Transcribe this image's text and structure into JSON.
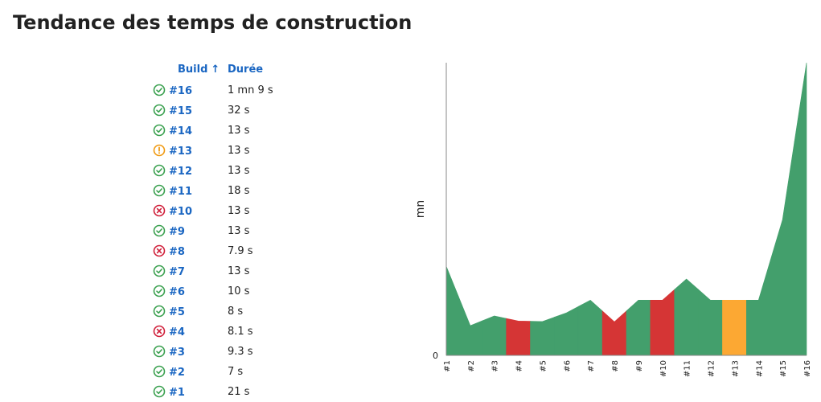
{
  "title": "Tendance des temps de construction",
  "table": {
    "header_build": "Build",
    "header_sort_indicator": "↑",
    "header_duration": "Durée",
    "rows": [
      {
        "build": "#16",
        "status": "success",
        "duration": "1 mn 9 s"
      },
      {
        "build": "#15",
        "status": "success",
        "duration": "32 s"
      },
      {
        "build": "#14",
        "status": "success",
        "duration": "13 s"
      },
      {
        "build": "#13",
        "status": "unstable",
        "duration": "13 s"
      },
      {
        "build": "#12",
        "status": "success",
        "duration": "13 s"
      },
      {
        "build": "#11",
        "status": "success",
        "duration": "18 s"
      },
      {
        "build": "#10",
        "status": "failure",
        "duration": "13 s"
      },
      {
        "build": "#9",
        "status": "success",
        "duration": "13 s"
      },
      {
        "build": "#8",
        "status": "failure",
        "duration": "7.9 s"
      },
      {
        "build": "#7",
        "status": "success",
        "duration": "13 s"
      },
      {
        "build": "#6",
        "status": "success",
        "duration": "10 s"
      },
      {
        "build": "#5",
        "status": "success",
        "duration": "8 s"
      },
      {
        "build": "#4",
        "status": "failure",
        "duration": "8.1 s"
      },
      {
        "build": "#3",
        "status": "success",
        "duration": "9.3 s"
      },
      {
        "build": "#2",
        "status": "success",
        "duration": "7 s"
      },
      {
        "build": "#1",
        "status": "success",
        "duration": "21 s"
      }
    ]
  },
  "colors": {
    "success": "#439f6c",
    "failure": "#d53535",
    "unstable": "#fca833",
    "success_icon": "#3aa04f",
    "failure_icon": "#d01f3a",
    "unstable_icon": "#f09a12"
  },
  "chart_data": {
    "type": "area",
    "ylabel": "mn",
    "y_tick_labels": [
      "0"
    ],
    "x": [
      "#1",
      "#2",
      "#3",
      "#4",
      "#5",
      "#6",
      "#7",
      "#8",
      "#9",
      "#10",
      "#11",
      "#12",
      "#13",
      "#14",
      "#15",
      "#16"
    ],
    "values_minutes": [
      0.35,
      0.117,
      0.155,
      0.135,
      0.133,
      0.167,
      0.217,
      0.132,
      0.217,
      0.217,
      0.3,
      0.217,
      0.217,
      0.217,
      0.533,
      1.15
    ],
    "status": [
      "success",
      "success",
      "success",
      "failure",
      "success",
      "success",
      "success",
      "failure",
      "success",
      "failure",
      "success",
      "success",
      "unstable",
      "success",
      "success",
      "success"
    ],
    "ylim": [
      0,
      1.15
    ],
    "grid": false,
    "legend": "none"
  }
}
